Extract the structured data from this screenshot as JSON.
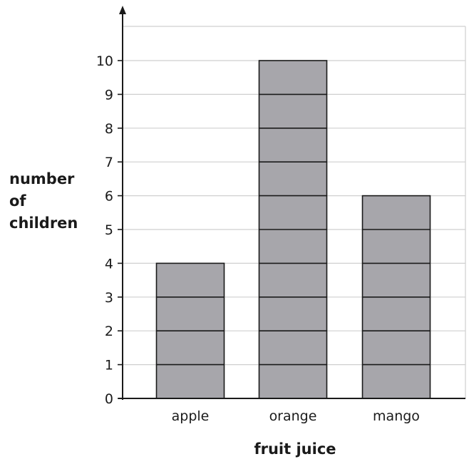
{
  "chart_data": {
    "type": "bar",
    "categories": [
      "apple",
      "orange",
      "mango"
    ],
    "values": [
      4,
      10,
      6
    ],
    "title": "",
    "xlabel": "fruit juice",
    "ylabel": [
      "number",
      "of",
      "children"
    ],
    "ylim": [
      0,
      10
    ],
    "yticks": [
      "0",
      "1",
      "2",
      "3",
      "4",
      "5",
      "6",
      "7",
      "8",
      "9",
      "10"
    ],
    "grid": true,
    "bar_color": "#a7a6ab",
    "bar_stroke": "#1a1a1a",
    "grid_color": "#cfcfcf"
  }
}
